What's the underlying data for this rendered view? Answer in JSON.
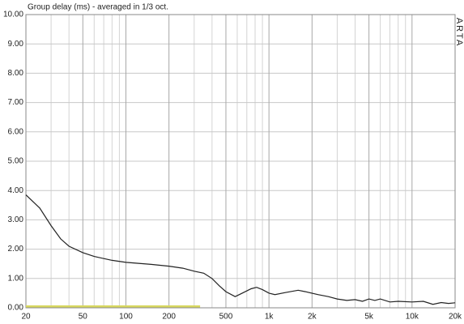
{
  "chart_data": {
    "type": "line",
    "title": "Group delay (ms) - averaged in 1/3 oct.",
    "watermark": "ARTA",
    "log_x": true,
    "grid": true,
    "xlim": [
      20,
      20000
    ],
    "xticks": [
      20,
      50,
      100,
      200,
      500,
      {
        "value": 1000,
        "label": "1k"
      },
      {
        "value": 2000,
        "label": "2k"
      },
      {
        "value": 5000,
        "label": "5k"
      },
      {
        "value": 10000,
        "label": "10k"
      },
      {
        "value": 20000,
        "label": "20k"
      }
    ],
    "xminorticks": [
      30,
      40,
      60,
      70,
      80,
      90,
      300,
      400,
      600,
      700,
      800,
      900,
      3000,
      4000,
      6000,
      7000,
      8000,
      9000
    ],
    "ylim": [
      0,
      10
    ],
    "yticks": [
      {
        "value": 0,
        "label": "0.00"
      },
      {
        "value": 1,
        "label": "1.00"
      },
      {
        "value": 2,
        "label": "2.00"
      },
      {
        "value": 3,
        "label": "3.00"
      },
      {
        "value": 4,
        "label": "4.00"
      },
      {
        "value": 5,
        "label": "5.00"
      },
      {
        "value": 6,
        "label": "6.00"
      },
      {
        "value": 7,
        "label": "7.00"
      },
      {
        "value": 8,
        "label": "8.00"
      },
      {
        "value": 9,
        "label": "9.00"
      },
      {
        "value": 10,
        "label": "10.00"
      }
    ],
    "series": [
      {
        "color": "#222222",
        "x": [
          20,
          25,
          30,
          35,
          40,
          50,
          60,
          70,
          80,
          100,
          150,
          200,
          250,
          300,
          350,
          400,
          450,
          500,
          580,
          650,
          750,
          820,
          900,
          1000,
          1100,
          1300,
          1600,
          1800,
          2200,
          2600,
          3000,
          3500,
          4000,
          4500,
          5000,
          5500,
          6000,
          7000,
          8000,
          10000,
          12000,
          14000,
          16000,
          18000,
          20000
        ],
        "values": [
          3.85,
          3.4,
          2.8,
          2.35,
          2.1,
          1.88,
          1.75,
          1.68,
          1.62,
          1.55,
          1.48,
          1.42,
          1.35,
          1.25,
          1.18,
          1.0,
          0.75,
          0.55,
          0.38,
          0.5,
          0.65,
          0.7,
          0.62,
          0.5,
          0.45,
          0.52,
          0.6,
          0.55,
          0.45,
          0.38,
          0.3,
          0.25,
          0.28,
          0.22,
          0.3,
          0.25,
          0.3,
          0.2,
          0.22,
          0.2,
          0.22,
          0.12,
          0.18,
          0.15,
          0.17
        ]
      },
      {
        "color": "#d8d860",
        "x": [
          20,
          330
        ],
        "values": [
          0.05,
          0.05
        ]
      }
    ]
  }
}
